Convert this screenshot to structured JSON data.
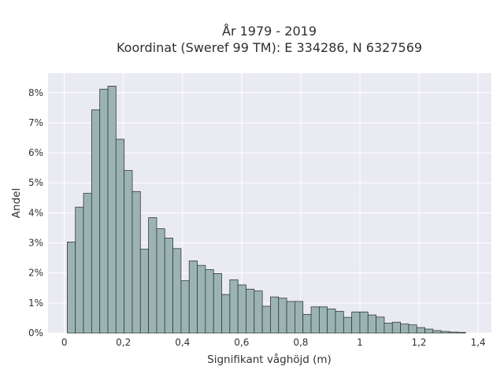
{
  "chart_data": {
    "type": "bar",
    "title_line1": "År 1979 - 2019",
    "title_line2": "Koordinat (Sweref 99 TM): E 334286, N 6327569",
    "xlabel": "Signifikant våghöjd (m)",
    "ylabel": "Andel",
    "xlim": [
      -0.055,
      1.445
    ],
    "ylim": [
      0,
      0.0865
    ],
    "x_ticks": [
      {
        "value": 0,
        "label": "0"
      },
      {
        "value": 0.2,
        "label": "0,2"
      },
      {
        "value": 0.4,
        "label": "0,4"
      },
      {
        "value": 0.6,
        "label": "0,6"
      },
      {
        "value": 0.8,
        "label": "0,8"
      },
      {
        "value": 1.0,
        "label": "1"
      },
      {
        "value": 1.2,
        "label": "1,2"
      },
      {
        "value": 1.4,
        "label": "1,4"
      }
    ],
    "y_ticks": [
      {
        "value": 0,
        "label": "0%"
      },
      {
        "value": 0.01,
        "label": "1%"
      },
      {
        "value": 0.02,
        "label": "2%"
      },
      {
        "value": 0.03,
        "label": "3%"
      },
      {
        "value": 0.04,
        "label": "4%"
      },
      {
        "value": 0.05,
        "label": "5%"
      },
      {
        "value": 0.06,
        "label": "6%"
      },
      {
        "value": 0.07,
        "label": "7%"
      },
      {
        "value": 0.08,
        "label": "8%"
      }
    ],
    "bin_start": 0.01,
    "bin_width": 0.0275,
    "values": [
      0.0303,
      0.0419,
      0.0465,
      0.0743,
      0.0812,
      0.0822,
      0.0645,
      0.0541,
      0.0471,
      0.0279,
      0.0384,
      0.0347,
      0.0316,
      0.0281,
      0.0174,
      0.024,
      0.0225,
      0.0211,
      0.0198,
      0.0128,
      0.0177,
      0.016,
      0.0146,
      0.014,
      0.0089,
      0.012,
      0.0116,
      0.0105,
      0.0105,
      0.0062,
      0.0087,
      0.0087,
      0.008,
      0.0072,
      0.0052,
      0.007,
      0.007,
      0.006,
      0.0053,
      0.0033,
      0.0036,
      0.003,
      0.0027,
      0.0018,
      0.0013,
      0.0008,
      0.0005,
      0.0003,
      0.0002
    ],
    "grid": true,
    "legend": "none",
    "colors": {
      "bar_fill": "#9bb4b3",
      "bar_edge": "#333a3a",
      "plot_background": "#eaeaf2",
      "grid": "#ffffff"
    }
  }
}
